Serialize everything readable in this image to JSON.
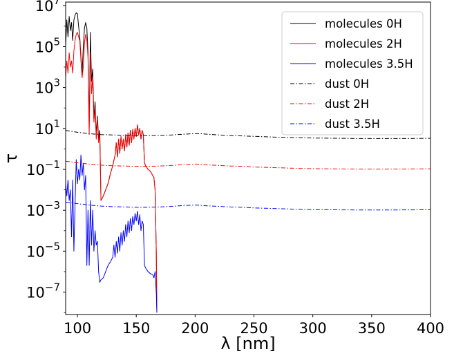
{
  "chart_data": {
    "type": "line",
    "xlabel": "λ [nm]",
    "ylabel": "τ",
    "x_scale": "linear",
    "y_scale": "log",
    "xlim": [
      90,
      400
    ],
    "ylim": [
      8e-09,
      15000000.0
    ],
    "x_ticks": [
      100,
      150,
      200,
      250,
      300,
      350,
      400
    ],
    "x_tick_labels": [
      "100",
      "150",
      "200",
      "250",
      "300",
      "350",
      "400"
    ],
    "y_ticks": [
      1e-07,
      1e-05,
      0.001,
      0.1,
      10.0,
      1000.0,
      100000.0,
      10000000.0
    ],
    "y_tick_bases": [
      "10",
      "10",
      "10",
      "10",
      "10",
      "10",
      "10",
      "10"
    ],
    "y_tick_exponents": [
      "−7",
      "−5",
      "−3",
      "−1",
      "1",
      "3",
      "5",
      "7"
    ],
    "grid": false,
    "legend_position": "top-right",
    "series": [
      {
        "name": "molecules 0H",
        "color": "#000000",
        "dash": "solid",
        "points": [
          [
            90,
            100000
          ],
          [
            91,
            2000000
          ],
          [
            92,
            300000
          ],
          [
            93,
            3000000
          ],
          [
            94,
            600000
          ],
          [
            95,
            1500000
          ],
          [
            96,
            200000
          ],
          [
            97,
            2000000
          ],
          [
            98,
            3500000
          ],
          [
            99,
            4500000
          ],
          [
            100,
            4000000
          ],
          [
            101,
            1000000
          ],
          [
            102,
            300000
          ],
          [
            103,
            30000
          ],
          [
            104,
            5000
          ],
          [
            105,
            100000
          ],
          [
            106,
            800000
          ],
          [
            107,
            1500000
          ],
          [
            108,
            800000
          ],
          [
            109,
            50000
          ],
          [
            110,
            10
          ],
          [
            111,
            500000
          ],
          [
            112,
            2000
          ],
          [
            113,
            8000
          ],
          [
            114,
            30
          ],
          [
            115,
            200
          ],
          [
            116,
            5
          ],
          [
            117,
            40
          ],
          [
            118,
            3
          ],
          [
            119,
            8
          ],
          [
            120,
            0.003
          ],
          [
            122,
            0.005
          ],
          [
            124,
            0.01
          ],
          [
            126,
            0.02
          ],
          [
            128,
            0.06
          ],
          [
            130,
            0.15
          ],
          [
            132,
            0.5
          ],
          [
            133,
            2
          ],
          [
            134,
            0.4
          ],
          [
            135,
            3
          ],
          [
            136,
            0.6
          ],
          [
            137,
            4
          ],
          [
            138,
            1
          ],
          [
            139,
            3
          ],
          [
            140,
            0.8
          ],
          [
            141,
            5
          ],
          [
            142,
            1.2
          ],
          [
            143,
            6
          ],
          [
            144,
            1.5
          ],
          [
            145,
            8
          ],
          [
            146,
            2
          ],
          [
            147,
            9
          ],
          [
            148,
            3
          ],
          [
            149,
            10
          ],
          [
            150,
            4
          ],
          [
            151,
            15
          ],
          [
            152,
            5
          ],
          [
            153,
            10
          ],
          [
            154,
            3
          ],
          [
            155,
            8
          ],
          [
            156,
            5
          ],
          [
            157,
            0.2
          ],
          [
            158,
            0.15
          ],
          [
            160,
            0.1
          ],
          [
            162,
            0.08
          ],
          [
            164,
            0.05
          ],
          [
            165,
            0.04
          ],
          [
            166,
            0.01
          ],
          [
            167,
            1e-05
          ],
          [
            167.5,
            1e-08
          ]
        ]
      },
      {
        "name": "molecules 2H",
        "color": "#ff0000",
        "dash": "solid",
        "points": [
          [
            90,
            3000
          ],
          [
            91,
            20000
          ],
          [
            92,
            5000
          ],
          [
            93,
            50000
          ],
          [
            94,
            10000
          ],
          [
            95,
            20000
          ],
          [
            96,
            5000
          ],
          [
            97,
            60000
          ],
          [
            98,
            200000
          ],
          [
            99,
            400000
          ],
          [
            100,
            500000
          ],
          [
            101,
            300000
          ],
          [
            102,
            200000
          ],
          [
            103,
            20000
          ],
          [
            104,
            3000
          ],
          [
            105,
            10000
          ],
          [
            106,
            150000
          ],
          [
            107,
            400000
          ],
          [
            108,
            200000
          ],
          [
            109,
            30000
          ],
          [
            110,
            5
          ],
          [
            111,
            50000
          ],
          [
            112,
            500
          ],
          [
            113,
            3000
          ],
          [
            114,
            20
          ],
          [
            115,
            100
          ],
          [
            116,
            3
          ],
          [
            117,
            30
          ],
          [
            118,
            2
          ],
          [
            119,
            5
          ],
          [
            120,
            0.003
          ],
          [
            122,
            0.005
          ],
          [
            124,
            0.01
          ],
          [
            126,
            0.02
          ],
          [
            128,
            0.06
          ],
          [
            130,
            0.15
          ],
          [
            132,
            0.5
          ],
          [
            133,
            2
          ],
          [
            134,
            0.4
          ],
          [
            135,
            3
          ],
          [
            136,
            0.6
          ],
          [
            137,
            4
          ],
          [
            138,
            1
          ],
          [
            139,
            3
          ],
          [
            140,
            0.8
          ],
          [
            141,
            5
          ],
          [
            142,
            1.2
          ],
          [
            143,
            6
          ],
          [
            144,
            1.5
          ],
          [
            145,
            8
          ],
          [
            146,
            2
          ],
          [
            147,
            9
          ],
          [
            148,
            3
          ],
          [
            149,
            10
          ],
          [
            150,
            4
          ],
          [
            151,
            15
          ],
          [
            152,
            5
          ],
          [
            153,
            10
          ],
          [
            154,
            3
          ],
          [
            155,
            8
          ],
          [
            156,
            5
          ],
          [
            157,
            0.2
          ],
          [
            158,
            0.15
          ],
          [
            160,
            0.1
          ],
          [
            162,
            0.08
          ],
          [
            164,
            0.05
          ],
          [
            165,
            0.04
          ],
          [
            166,
            0.01
          ],
          [
            167,
            1e-05
          ],
          [
            167.5,
            1e-08
          ]
        ]
      },
      {
        "name": "molecules 3.5H",
        "color": "#0000ff",
        "dash": "solid",
        "points": [
          [
            90,
            0.02
          ],
          [
            91,
            0.005
          ],
          [
            92,
            0.03
          ],
          [
            93,
            0.003
          ],
          [
            94,
            0.01
          ],
          [
            95,
            5e-05
          ],
          [
            96,
            0.03
          ],
          [
            97,
            1e-05
          ],
          [
            98,
            0.002
          ],
          [
            99,
            0.3
          ],
          [
            100,
            0.02
          ],
          [
            101,
            0.1
          ],
          [
            102,
            0.03
          ],
          [
            103,
            0.5
          ],
          [
            104,
            0.05
          ],
          [
            105,
            0.2
          ],
          [
            106,
            0.01
          ],
          [
            107,
            0.05
          ],
          [
            108,
            2e-06
          ],
          [
            109,
            0.001
          ],
          [
            110,
            2e-06
          ],
          [
            111,
            0.003
          ],
          [
            112,
            2e-05
          ],
          [
            113,
            0.001
          ],
          [
            114,
            1e-05
          ],
          [
            115,
            0.0001
          ],
          [
            116,
            2e-05
          ],
          [
            117,
            3e-05
          ],
          [
            118,
            1e-06
          ],
          [
            119,
            3e-07
          ],
          [
            120,
            4e-07
          ],
          [
            122,
            5e-07
          ],
          [
            124,
            1e-06
          ],
          [
            126,
            2e-06
          ],
          [
            128,
            3e-06
          ],
          [
            130,
            5e-06
          ],
          [
            131,
            2e-05
          ],
          [
            132,
            5e-06
          ],
          [
            133,
            3e-05
          ],
          [
            134,
            8e-06
          ],
          [
            135,
            5e-05
          ],
          [
            136,
            1e-05
          ],
          [
            137,
            8e-05
          ],
          [
            138,
            2e-05
          ],
          [
            139,
            0.0001
          ],
          [
            140,
            3e-05
          ],
          [
            141,
            0.0002
          ],
          [
            142,
            5e-05
          ],
          [
            143,
            0.0003
          ],
          [
            144,
            8e-05
          ],
          [
            145,
            0.0004
          ],
          [
            146,
            0.0001
          ],
          [
            147,
            0.0005
          ],
          [
            148,
            0.0002
          ],
          [
            149,
            0.0007
          ],
          [
            150,
            0.0003
          ],
          [
            151,
            0.0009
          ],
          [
            152,
            0.0002
          ],
          [
            153,
            0.0006
          ],
          [
            154,
            0.0001
          ],
          [
            155,
            0.0003
          ],
          [
            156,
            0.0002
          ],
          [
            157,
            2e-06
          ],
          [
            158,
            1.5e-06
          ],
          [
            160,
            1e-06
          ],
          [
            162,
            8e-07
          ],
          [
            164,
            7e-07
          ],
          [
            165,
            5e-07
          ],
          [
            166,
            1e-06
          ],
          [
            167,
            1e-07
          ],
          [
            167.5,
            1e-08
          ]
        ]
      },
      {
        "name": "dust 0H",
        "color": "#000000",
        "dash": "dashdot",
        "points": [
          [
            90,
            8
          ],
          [
            100,
            6.5
          ],
          [
            110,
            5.5
          ],
          [
            120,
            5
          ],
          [
            130,
            4.8
          ],
          [
            140,
            4.6
          ],
          [
            150,
            4.5
          ],
          [
            160,
            4.5
          ],
          [
            170,
            4.6
          ],
          [
            180,
            4.8
          ],
          [
            190,
            5.2
          ],
          [
            200,
            5.6
          ],
          [
            205,
            5.5
          ],
          [
            210,
            5.2
          ],
          [
            220,
            4.8
          ],
          [
            230,
            4.5
          ],
          [
            240,
            4.3
          ],
          [
            250,
            4.1
          ],
          [
            260,
            3.9
          ],
          [
            270,
            3.7
          ],
          [
            280,
            3.6
          ],
          [
            290,
            3.5
          ],
          [
            300,
            3.4
          ],
          [
            320,
            3.3
          ],
          [
            340,
            3.2
          ],
          [
            360,
            3.2
          ],
          [
            380,
            3.2
          ],
          [
            400,
            3.3
          ]
        ]
      },
      {
        "name": "dust 2H",
        "color": "#ff0000",
        "dash": "dashdot",
        "points": [
          [
            90,
            0.25
          ],
          [
            100,
            0.21
          ],
          [
            110,
            0.18
          ],
          [
            120,
            0.16
          ],
          [
            130,
            0.15
          ],
          [
            140,
            0.145
          ],
          [
            150,
            0.14
          ],
          [
            160,
            0.14
          ],
          [
            170,
            0.145
          ],
          [
            180,
            0.155
          ],
          [
            190,
            0.17
          ],
          [
            200,
            0.18
          ],
          [
            205,
            0.175
          ],
          [
            210,
            0.165
          ],
          [
            220,
            0.155
          ],
          [
            230,
            0.145
          ],
          [
            240,
            0.14
          ],
          [
            250,
            0.13
          ],
          [
            260,
            0.125
          ],
          [
            270,
            0.12
          ],
          [
            280,
            0.115
          ],
          [
            290,
            0.11
          ],
          [
            300,
            0.108
          ],
          [
            320,
            0.105
          ],
          [
            340,
            0.103
          ],
          [
            360,
            0.103
          ],
          [
            380,
            0.104
          ],
          [
            400,
            0.106
          ]
        ]
      },
      {
        "name": "dust 3.5H",
        "color": "#0000ff",
        "dash": "dashdot",
        "points": [
          [
            90,
            0.0025
          ],
          [
            100,
            0.0021
          ],
          [
            110,
            0.0018
          ],
          [
            120,
            0.0016
          ],
          [
            130,
            0.0015
          ],
          [
            140,
            0.00145
          ],
          [
            150,
            0.0014
          ],
          [
            160,
            0.0014
          ],
          [
            170,
            0.00145
          ],
          [
            180,
            0.00155
          ],
          [
            190,
            0.0017
          ],
          [
            200,
            0.0018
          ],
          [
            205,
            0.00175
          ],
          [
            210,
            0.00165
          ],
          [
            220,
            0.00155
          ],
          [
            230,
            0.00145
          ],
          [
            240,
            0.0014
          ],
          [
            250,
            0.0013
          ],
          [
            260,
            0.00125
          ],
          [
            270,
            0.0012
          ],
          [
            280,
            0.00115
          ],
          [
            290,
            0.0011
          ],
          [
            300,
            0.00108
          ],
          [
            320,
            0.00105
          ],
          [
            340,
            0.00103
          ],
          [
            360,
            0.00103
          ],
          [
            380,
            0.00104
          ],
          [
            400,
            0.00106
          ]
        ]
      }
    ]
  }
}
